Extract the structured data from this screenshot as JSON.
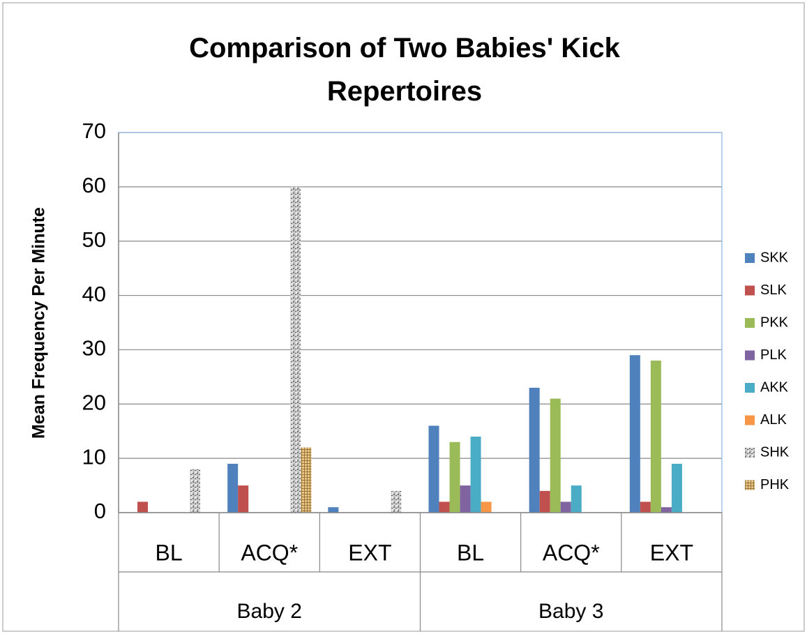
{
  "chart_data": {
    "type": "bar",
    "title": "Comparison of Two Babies' Kick Repertoires",
    "y_label": "Mean Frequency Per Minute",
    "groups": [
      {
        "name": "Baby 2",
        "categories": [
          "BL",
          "ACQ*",
          "EXT"
        ]
      },
      {
        "name": "Baby 3",
        "categories": [
          "BL",
          "ACQ*",
          "EXT"
        ]
      }
    ],
    "series": [
      {
        "name": "SKK",
        "color": "#4f81bd",
        "values": [
          0,
          9,
          1,
          16,
          23,
          29
        ]
      },
      {
        "name": "SLK",
        "color": "#c0504d",
        "values": [
          2,
          5,
          0,
          2,
          4,
          2
        ]
      },
      {
        "name": "PKK",
        "color": "#9bbb59",
        "values": [
          0,
          0,
          0,
          13,
          21,
          28
        ]
      },
      {
        "name": "PLK",
        "color": "#8064a2",
        "values": [
          0,
          0,
          0,
          5,
          2,
          1
        ]
      },
      {
        "name": "AKK",
        "color": "#4bacc6",
        "values": [
          0,
          0,
          0,
          14,
          5,
          9
        ]
      },
      {
        "name": "ALK",
        "color": "#f79646",
        "values": [
          0,
          0,
          0,
          2,
          0,
          0
        ]
      },
      {
        "name": "SHK",
        "color": "#a6a6a6",
        "pattern": "speckle",
        "values": [
          8,
          60,
          4,
          0,
          0,
          0
        ]
      },
      {
        "name": "PHK",
        "color": "#c9a464",
        "pattern": "grid",
        "values": [
          0,
          12,
          0,
          0,
          0,
          0
        ]
      }
    ],
    "ylim": [
      0,
      70
    ],
    "yticks": [
      0,
      10,
      20,
      30,
      40,
      50,
      60,
      70
    ],
    "grid": true,
    "legend": "right"
  }
}
